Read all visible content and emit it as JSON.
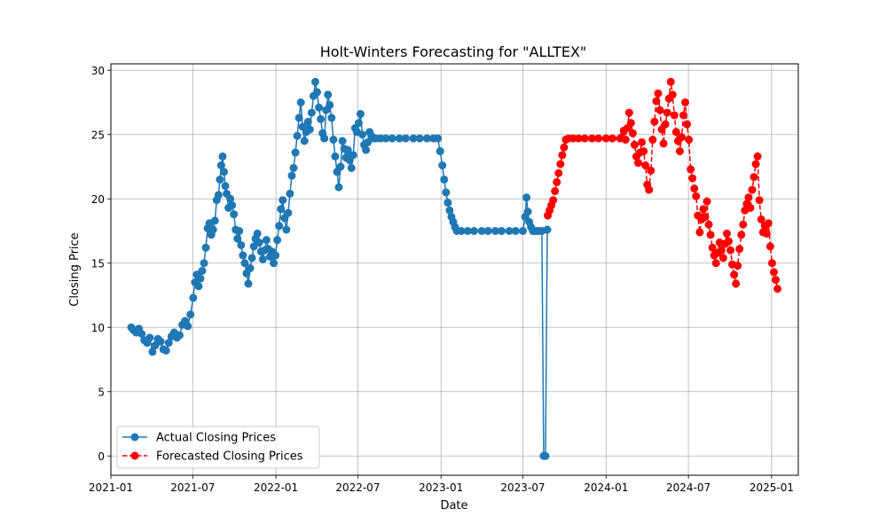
{
  "chart_data": {
    "type": "line",
    "title": "Holt-Winters Forecasting for \"ALLTEX\"",
    "xlabel": "Date",
    "ylabel": "Closing Price",
    "xlim": [
      "2021-01-01",
      "2025-03-01"
    ],
    "ylim": [
      -1.5,
      30.5
    ],
    "x_ticks": [
      "2021-01",
      "2021-07",
      "2022-01",
      "2022-07",
      "2023-01",
      "2023-07",
      "2024-01",
      "2024-07",
      "2025-01"
    ],
    "y_ticks": [
      0,
      5,
      10,
      15,
      20,
      25,
      30
    ],
    "grid": true,
    "legend_position": "lower-left",
    "series": [
      {
        "name": "Actual Closing Prices",
        "color": "#1f77b4",
        "line_style": "solid",
        "marker": "circle",
        "points": [
          [
            "2021-02-15",
            10.0
          ],
          [
            "2021-02-20",
            9.8
          ],
          [
            "2021-02-26",
            9.6
          ],
          [
            "2021-03-04",
            9.9
          ],
          [
            "2021-03-10",
            9.5
          ],
          [
            "2021-03-16",
            9.0
          ],
          [
            "2021-03-22",
            8.8
          ],
          [
            "2021-03-28",
            9.2
          ],
          [
            "2021-04-03",
            8.1
          ],
          [
            "2021-04-09",
            8.6
          ],
          [
            "2021-04-15",
            9.1
          ],
          [
            "2021-04-21",
            8.9
          ],
          [
            "2021-04-27",
            8.3
          ],
          [
            "2021-05-03",
            8.2
          ],
          [
            "2021-05-09",
            8.8
          ],
          [
            "2021-05-15",
            9.3
          ],
          [
            "2021-05-21",
            9.6
          ],
          [
            "2021-05-27",
            9.2
          ],
          [
            "2021-06-02",
            9.4
          ],
          [
            "2021-06-08",
            10.2
          ],
          [
            "2021-06-14",
            10.5
          ],
          [
            "2021-06-20",
            10.1
          ],
          [
            "2021-06-26",
            11.0
          ],
          [
            "2021-07-02",
            12.3
          ],
          [
            "2021-07-06",
            13.5
          ],
          [
            "2021-07-10",
            14.1
          ],
          [
            "2021-07-14",
            13.2
          ],
          [
            "2021-07-18",
            13.8
          ],
          [
            "2021-07-22",
            14.4
          ],
          [
            "2021-07-26",
            15.0
          ],
          [
            "2021-07-30",
            16.2
          ],
          [
            "2021-08-03",
            17.7
          ],
          [
            "2021-08-07",
            18.1
          ],
          [
            "2021-08-11",
            17.2
          ],
          [
            "2021-08-15",
            17.6
          ],
          [
            "2021-08-19",
            18.3
          ],
          [
            "2021-08-23",
            19.9
          ],
          [
            "2021-08-27",
            20.3
          ],
          [
            "2021-08-30",
            21.5
          ],
          [
            "2021-09-02",
            22.6
          ],
          [
            "2021-09-05",
            23.3
          ],
          [
            "2021-09-08",
            22.1
          ],
          [
            "2021-09-11",
            21.0
          ],
          [
            "2021-09-14",
            20.4
          ],
          [
            "2021-09-18",
            19.3
          ],
          [
            "2021-09-22",
            20.0
          ],
          [
            "2021-09-26",
            19.5
          ],
          [
            "2021-09-30",
            18.8
          ],
          [
            "2021-10-04",
            17.6
          ],
          [
            "2021-10-08",
            16.9
          ],
          [
            "2021-10-12",
            17.5
          ],
          [
            "2021-10-16",
            16.4
          ],
          [
            "2021-10-20",
            15.6
          ],
          [
            "2021-10-24",
            15.0
          ],
          [
            "2021-10-28",
            14.2
          ],
          [
            "2021-11-01",
            13.4
          ],
          [
            "2021-11-05",
            14.6
          ],
          [
            "2021-11-09",
            15.4
          ],
          [
            "2021-11-13",
            16.3
          ],
          [
            "2021-11-17",
            16.9
          ],
          [
            "2021-11-21",
            17.3
          ],
          [
            "2021-11-25",
            16.6
          ],
          [
            "2021-11-29",
            15.9
          ],
          [
            "2021-12-03",
            15.3
          ],
          [
            "2021-12-07",
            16.0
          ],
          [
            "2021-12-11",
            16.8
          ],
          [
            "2021-12-15",
            16.1
          ],
          [
            "2021-12-19",
            15.5
          ],
          [
            "2021-12-23",
            15.9
          ],
          [
            "2021-12-27",
            15.0
          ],
          [
            "2021-12-31",
            15.6
          ],
          [
            "2022-01-04",
            16.8
          ],
          [
            "2022-01-08",
            17.9
          ],
          [
            "2022-01-12",
            19.2
          ],
          [
            "2022-01-16",
            19.9
          ],
          [
            "2022-01-20",
            18.5
          ],
          [
            "2022-01-24",
            17.6
          ],
          [
            "2022-01-28",
            18.9
          ],
          [
            "2022-02-01",
            20.4
          ],
          [
            "2022-02-05",
            21.8
          ],
          [
            "2022-02-09",
            22.4
          ],
          [
            "2022-02-13",
            23.6
          ],
          [
            "2022-02-17",
            24.9
          ],
          [
            "2022-02-21",
            26.3
          ],
          [
            "2022-02-25",
            27.5
          ],
          [
            "2022-03-01",
            25.6
          ],
          [
            "2022-03-05",
            24.5
          ],
          [
            "2022-03-09",
            25.2
          ],
          [
            "2022-03-13",
            26.0
          ],
          [
            "2022-03-17",
            25.4
          ],
          [
            "2022-03-21",
            26.7
          ],
          [
            "2022-03-25",
            28.0
          ],
          [
            "2022-03-29",
            29.1
          ],
          [
            "2022-04-02",
            28.3
          ],
          [
            "2022-04-06",
            27.1
          ],
          [
            "2022-04-10",
            26.2
          ],
          [
            "2022-04-14",
            25.1
          ],
          [
            "2022-04-18",
            24.7
          ],
          [
            "2022-04-22",
            26.9
          ],
          [
            "2022-04-26",
            28.1
          ],
          [
            "2022-04-30",
            27.3
          ],
          [
            "2022-05-04",
            26.3
          ],
          [
            "2022-05-08",
            24.6
          ],
          [
            "2022-05-12",
            23.3
          ],
          [
            "2022-05-16",
            22.1
          ],
          [
            "2022-05-20",
            20.9
          ],
          [
            "2022-05-24",
            22.5
          ],
          [
            "2022-05-28",
            24.5
          ],
          [
            "2022-06-01",
            23.9
          ],
          [
            "2022-06-05",
            23.2
          ],
          [
            "2022-06-09",
            23.8
          ],
          [
            "2022-06-13",
            23.0
          ],
          [
            "2022-06-17",
            22.4
          ],
          [
            "2022-06-21",
            23.4
          ],
          [
            "2022-06-25",
            25.5
          ],
          [
            "2022-06-29",
            25.2
          ],
          [
            "2022-07-03",
            25.9
          ],
          [
            "2022-07-07",
            26.6
          ],
          [
            "2022-07-11",
            25.0
          ],
          [
            "2022-07-15",
            24.2
          ],
          [
            "2022-07-19",
            23.8
          ],
          [
            "2022-07-23",
            24.4
          ],
          [
            "2022-07-27",
            25.2
          ],
          [
            "2022-07-31",
            24.9
          ],
          [
            "2022-08-04",
            24.7
          ],
          [
            "2022-08-10",
            24.7
          ],
          [
            "2022-08-20",
            24.7
          ],
          [
            "2022-09-01",
            24.7
          ],
          [
            "2022-09-15",
            24.7
          ],
          [
            "2022-10-01",
            24.7
          ],
          [
            "2022-10-15",
            24.7
          ],
          [
            "2022-11-01",
            24.7
          ],
          [
            "2022-11-15",
            24.7
          ],
          [
            "2022-12-01",
            24.7
          ],
          [
            "2022-12-15",
            24.7
          ],
          [
            "2022-12-25",
            24.7
          ],
          [
            "2022-12-30",
            23.7
          ],
          [
            "2023-01-04",
            22.6
          ],
          [
            "2023-01-08",
            21.5
          ],
          [
            "2023-01-12",
            20.5
          ],
          [
            "2023-01-16",
            19.7
          ],
          [
            "2023-01-20",
            19.1
          ],
          [
            "2023-01-24",
            18.6
          ],
          [
            "2023-01-28",
            18.2
          ],
          [
            "2023-02-01",
            17.8
          ],
          [
            "2023-02-05",
            17.5
          ],
          [
            "2023-02-15",
            17.5
          ],
          [
            "2023-03-01",
            17.5
          ],
          [
            "2023-03-15",
            17.5
          ],
          [
            "2023-04-01",
            17.5
          ],
          [
            "2023-04-15",
            17.5
          ],
          [
            "2023-05-01",
            17.5
          ],
          [
            "2023-05-15",
            17.5
          ],
          [
            "2023-06-01",
            17.5
          ],
          [
            "2023-06-15",
            17.5
          ],
          [
            "2023-07-01",
            17.5
          ],
          [
            "2023-07-06",
            18.6
          ],
          [
            "2023-07-09",
            20.1
          ],
          [
            "2023-07-12",
            19.0
          ],
          [
            "2023-07-15",
            18.2
          ],
          [
            "2023-07-19",
            17.8
          ],
          [
            "2023-07-23",
            17.5
          ],
          [
            "2023-07-27",
            17.5
          ],
          [
            "2023-08-01",
            17.5
          ],
          [
            "2023-08-07",
            17.5
          ],
          [
            "2023-08-12",
            17.5
          ],
          [
            "2023-08-16",
            0.0
          ],
          [
            "2023-08-20",
            0.0
          ],
          [
            "2023-08-24",
            17.6
          ]
        ]
      },
      {
        "name": "Forecasted Closing Prices",
        "color": "#ff0000",
        "line_style": "dashed",
        "marker": "circle",
        "points": [
          [
            "2023-08-25",
            18.7
          ],
          [
            "2023-08-29",
            19.1
          ],
          [
            "2023-09-02",
            19.5
          ],
          [
            "2023-09-06",
            19.9
          ],
          [
            "2023-09-10",
            20.6
          ],
          [
            "2023-09-14",
            21.3
          ],
          [
            "2023-09-18",
            22.0
          ],
          [
            "2023-09-22",
            22.7
          ],
          [
            "2023-09-26",
            23.4
          ],
          [
            "2023-09-30",
            24.0
          ],
          [
            "2023-10-04",
            24.6
          ],
          [
            "2023-10-10",
            24.7
          ],
          [
            "2023-10-20",
            24.7
          ],
          [
            "2023-11-01",
            24.7
          ],
          [
            "2023-11-15",
            24.7
          ],
          [
            "2023-12-01",
            24.7
          ],
          [
            "2023-12-15",
            24.7
          ],
          [
            "2024-01-01",
            24.7
          ],
          [
            "2024-01-15",
            24.7
          ],
          [
            "2024-02-01",
            24.7
          ],
          [
            "2024-02-05",
            24.8
          ],
          [
            "2024-02-09",
            25.3
          ],
          [
            "2024-02-13",
            24.6
          ],
          [
            "2024-02-17",
            25.5
          ],
          [
            "2024-02-21",
            26.7
          ],
          [
            "2024-02-25",
            25.9
          ],
          [
            "2024-02-29",
            25.1
          ],
          [
            "2024-03-04",
            24.2
          ],
          [
            "2024-03-08",
            23.3
          ],
          [
            "2024-03-12",
            22.8
          ],
          [
            "2024-03-16",
            23.6
          ],
          [
            "2024-03-20",
            24.4
          ],
          [
            "2024-03-24",
            23.7
          ],
          [
            "2024-03-28",
            22.6
          ],
          [
            "2024-04-01",
            21.1
          ],
          [
            "2024-04-05",
            20.7
          ],
          [
            "2024-04-09",
            22.2
          ],
          [
            "2024-04-13",
            24.6
          ],
          [
            "2024-04-17",
            26.0
          ],
          [
            "2024-04-21",
            27.6
          ],
          [
            "2024-04-25",
            28.2
          ],
          [
            "2024-04-29",
            26.9
          ],
          [
            "2024-05-03",
            25.4
          ],
          [
            "2024-05-07",
            24.3
          ],
          [
            "2024-05-11",
            25.8
          ],
          [
            "2024-05-15",
            26.7
          ],
          [
            "2024-05-19",
            27.8
          ],
          [
            "2024-05-23",
            29.1
          ],
          [
            "2024-05-27",
            28.1
          ],
          [
            "2024-05-31",
            26.5
          ],
          [
            "2024-06-04",
            25.2
          ],
          [
            "2024-06-08",
            24.5
          ],
          [
            "2024-06-12",
            23.7
          ],
          [
            "2024-06-16",
            24.8
          ],
          [
            "2024-06-20",
            26.5
          ],
          [
            "2024-06-24",
            27.5
          ],
          [
            "2024-06-28",
            25.8
          ],
          [
            "2024-07-02",
            24.6
          ],
          [
            "2024-07-06",
            22.3
          ],
          [
            "2024-07-10",
            21.6
          ],
          [
            "2024-07-14",
            20.8
          ],
          [
            "2024-07-18",
            20.2
          ],
          [
            "2024-07-22",
            18.7
          ],
          [
            "2024-07-26",
            17.4
          ],
          [
            "2024-07-30",
            18.4
          ],
          [
            "2024-08-03",
            19.2
          ],
          [
            "2024-08-07",
            18.6
          ],
          [
            "2024-08-11",
            19.8
          ],
          [
            "2024-08-15",
            18.0
          ],
          [
            "2024-08-19",
            17.2
          ],
          [
            "2024-08-23",
            16.2
          ],
          [
            "2024-08-27",
            15.6
          ],
          [
            "2024-08-31",
            15.0
          ],
          [
            "2024-09-04",
            15.8
          ],
          [
            "2024-09-08",
            16.6
          ],
          [
            "2024-09-12",
            16.0
          ],
          [
            "2024-09-16",
            15.4
          ],
          [
            "2024-09-20",
            16.5
          ],
          [
            "2024-09-24",
            17.3
          ],
          [
            "2024-09-28",
            16.7
          ],
          [
            "2024-10-02",
            16.0
          ],
          [
            "2024-10-06",
            14.9
          ],
          [
            "2024-10-10",
            14.1
          ],
          [
            "2024-10-14",
            13.4
          ],
          [
            "2024-10-18",
            14.8
          ],
          [
            "2024-10-22",
            16.1
          ],
          [
            "2024-10-26",
            17.2
          ],
          [
            "2024-10-30",
            18.0
          ],
          [
            "2024-11-03",
            19.1
          ],
          [
            "2024-11-07",
            19.6
          ],
          [
            "2024-11-11",
            20.1
          ],
          [
            "2024-11-15",
            19.3
          ],
          [
            "2024-11-19",
            20.7
          ],
          [
            "2024-11-23",
            21.7
          ],
          [
            "2024-11-27",
            22.7
          ],
          [
            "2024-12-01",
            23.3
          ],
          [
            "2024-12-05",
            19.9
          ],
          [
            "2024-12-09",
            18.4
          ],
          [
            "2024-12-13",
            17.4
          ],
          [
            "2024-12-17",
            17.9
          ],
          [
            "2024-12-21",
            17.3
          ],
          [
            "2024-12-25",
            18.1
          ],
          [
            "2024-12-29",
            16.3
          ],
          [
            "2025-01-02",
            15.0
          ],
          [
            "2025-01-06",
            14.3
          ],
          [
            "2025-01-10",
            13.7
          ],
          [
            "2025-01-14",
            13.0
          ]
        ]
      }
    ]
  }
}
